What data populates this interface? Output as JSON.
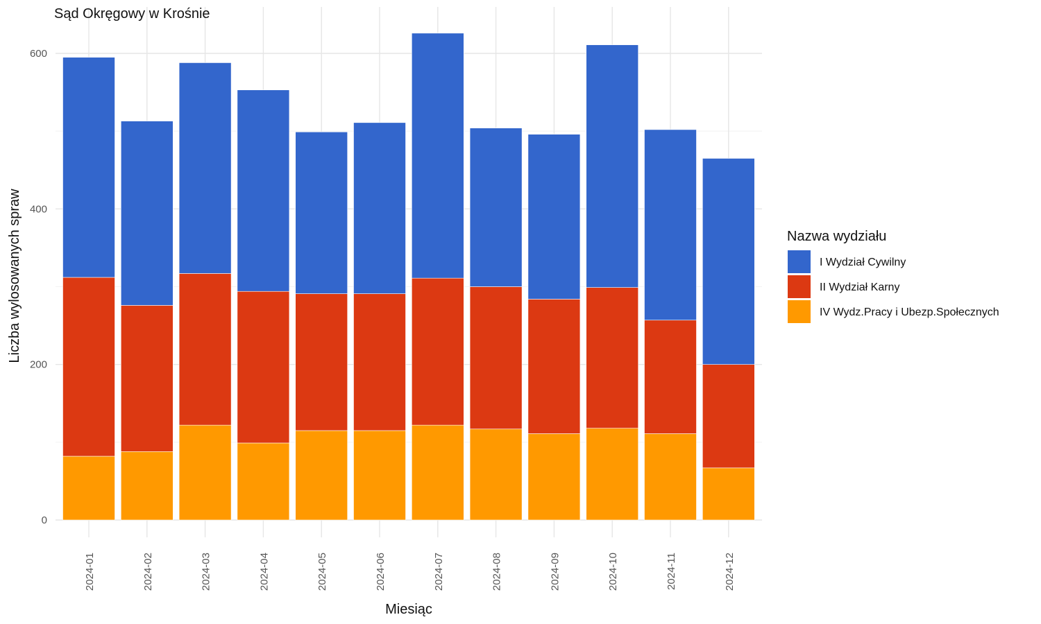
{
  "chart_data": {
    "type": "bar",
    "stacked": true,
    "title": "Sąd Okręgowy w Krośnie",
    "xlabel": "Miesiąc",
    "ylabel": "Liczba wylosowanych spraw",
    "ylim": [
      0,
      640
    ],
    "yticks": [
      0,
      200,
      400,
      600
    ],
    "grid": true,
    "legend_title": "Nazwa wydziału",
    "legend_position": "right",
    "categories": [
      "2024-01",
      "2024-02",
      "2024-03",
      "2024-04",
      "2024-05",
      "2024-06",
      "2024-07",
      "2024-08",
      "2024-09",
      "2024-10",
      "2024-11",
      "2024-12"
    ],
    "series": [
      {
        "name": "IV Wydz.Pracy i Ubezp.Społecznych",
        "color": "#FF9900",
        "values": [
          82,
          88,
          122,
          99,
          115,
          115,
          122,
          117,
          111,
          118,
          111,
          67
        ]
      },
      {
        "name": "II Wydział Karny",
        "color": "#DC3912",
        "values": [
          230,
          188,
          195,
          195,
          176,
          176,
          189,
          183,
          173,
          181,
          146,
          133
        ]
      },
      {
        "name": "I Wydział Cywilny",
        "color": "#3366CC",
        "values": [
          283,
          237,
          271,
          259,
          208,
          220,
          315,
          204,
          212,
          312,
          245,
          265
        ]
      }
    ],
    "legend_order": [
      "I Wydział Cywilny",
      "II Wydział Karny",
      "IV Wydz.Pracy i Ubezp.Społecznych"
    ]
  }
}
